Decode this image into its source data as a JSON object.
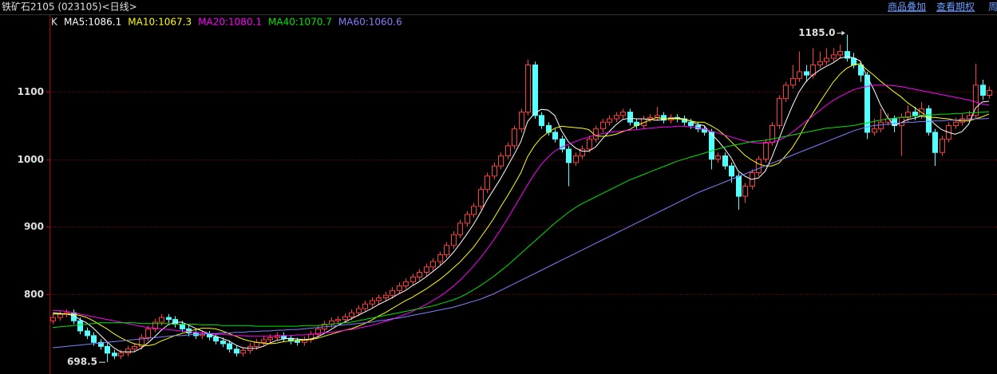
{
  "toolbar": [
    "商品叠加",
    "查看期权",
    "周"
  ],
  "chart_data": {
    "type": "candlestick",
    "title": "铁矿石2105 (023105)<日线>",
    "candle_label": "K",
    "up_color": "#ff3c3c",
    "down_color": "#54ffff",
    "grid": true,
    "ylim": [
      681,
      1214
    ],
    "yticks": [
      800,
      900,
      1000,
      1100
    ],
    "max_label": "1185.0",
    "max_index": 117,
    "min_index": 8,
    "open": [
      760,
      765,
      770,
      772,
      760,
      745,
      738,
      728,
      722,
      712,
      708,
      712,
      718,
      722,
      735,
      748,
      758,
      765,
      762,
      755,
      748,
      742,
      738,
      740,
      736,
      730,
      726,
      718,
      712,
      716,
      722,
      728,
      732,
      735,
      738,
      734,
      730,
      728,
      732,
      740,
      748,
      755,
      760,
      762,
      766,
      772,
      778,
      785,
      790,
      794,
      798,
      805,
      812,
      818,
      825,
      832,
      840,
      848,
      858,
      872,
      888,
      905,
      918,
      930,
      955,
      975,
      990,
      1005,
      1020,
      1045,
      1070,
      1140,
      1065,
      1050,
      1040,
      1030,
      1015,
      995,
      1005,
      1015,
      1030,
      1045,
      1055,
      1060,
      1065,
      1070,
      1055,
      1050,
      1060,
      1062,
      1065,
      1058,
      1062,
      1060,
      1055,
      1050,
      1045,
      1040,
      1000,
      1005,
      990,
      975,
      945,
      960,
      980,
      1000,
      1025,
      1050,
      1090,
      1110,
      1120,
      1130,
      1125,
      1140,
      1145,
      1150,
      1155,
      1160,
      1150,
      1140,
      1125,
      1040,
      1045,
      1055,
      1060,
      1050,
      1062,
      1070,
      1065,
      1075,
      1040,
      1010,
      1030,
      1050,
      1055,
      1060,
      1065,
      1110,
      1095
    ],
    "high": [
      770,
      775,
      777,
      777,
      765,
      750,
      743,
      733,
      727,
      717,
      717,
      723,
      727,
      740,
      753,
      763,
      770,
      770,
      767,
      760,
      753,
      747,
      745,
      745,
      741,
      735,
      731,
      723,
      721,
      727,
      733,
      737,
      740,
      743,
      743,
      739,
      735,
      737,
      745,
      753,
      760,
      765,
      767,
      771,
      777,
      783,
      790,
      795,
      799,
      803,
      810,
      817,
      823,
      830,
      837,
      845,
      853,
      863,
      877,
      893,
      910,
      923,
      935,
      960,
      980,
      995,
      1010,
      1025,
      1050,
      1075,
      1148,
      1145,
      1070,
      1055,
      1045,
      1035,
      1020,
      1010,
      1020,
      1035,
      1050,
      1060,
      1065,
      1070,
      1075,
      1075,
      1060,
      1065,
      1067,
      1078,
      1070,
      1067,
      1067,
      1065,
      1060,
      1055,
      1050,
      1045,
      1010,
      1010,
      995,
      980,
      965,
      985,
      1005,
      1030,
      1055,
      1095,
      1115,
      1140,
      1160,
      1140,
      1165,
      1160,
      1165,
      1165,
      1170,
      1185,
      1158,
      1145,
      1130,
      1060,
      1075,
      1068,
      1065,
      1068,
      1080,
      1078,
      1085,
      1080,
      1045,
      1035,
      1055,
      1062,
      1068,
      1072,
      1142,
      1118,
      1108
    ],
    "low": [
      755,
      760,
      765,
      755,
      740,
      733,
      723,
      717,
      698.5,
      703,
      703,
      707,
      713,
      717,
      730,
      743,
      753,
      757,
      750,
      743,
      737,
      733,
      733,
      731,
      725,
      721,
      713,
      707,
      707,
      711,
      717,
      723,
      727,
      730,
      729,
      725,
      723,
      723,
      727,
      735,
      743,
      750,
      755,
      757,
      761,
      767,
      773,
      780,
      785,
      789,
      793,
      800,
      807,
      813,
      820,
      827,
      835,
      843,
      853,
      867,
      883,
      900,
      913,
      925,
      950,
      970,
      985,
      1000,
      1015,
      1040,
      1065,
      1060,
      1045,
      1035,
      1025,
      1010,
      960,
      990,
      1000,
      1010,
      1025,
      1040,
      1050,
      1055,
      1060,
      1050,
      1045,
      1045,
      1055,
      1057,
      1053,
      1053,
      1055,
      1050,
      1045,
      1040,
      1035,
      985,
      995,
      985,
      965,
      925,
      935,
      955,
      975,
      995,
      1020,
      1045,
      1085,
      1105,
      1115,
      1115,
      1120,
      1135,
      1140,
      1145,
      1150,
      1145,
      1135,
      1115,
      1030,
      1035,
      1040,
      1050,
      1040,
      1005,
      1055,
      1058,
      1060,
      1035,
      990,
      1005,
      1025,
      1045,
      1050,
      1055,
      1060,
      1088,
      1090
    ],
    "close": [
      765,
      770,
      772,
      760,
      745,
      738,
      728,
      722,
      712,
      708,
      712,
      718,
      722,
      735,
      748,
      758,
      765,
      762,
      755,
      748,
      742,
      738,
      740,
      736,
      730,
      726,
      718,
      712,
      716,
      722,
      728,
      732,
      735,
      738,
      734,
      730,
      728,
      732,
      740,
      748,
      755,
      760,
      762,
      766,
      772,
      778,
      785,
      790,
      794,
      798,
      805,
      812,
      818,
      825,
      832,
      840,
      848,
      858,
      872,
      888,
      905,
      918,
      930,
      955,
      975,
      990,
      1005,
      1020,
      1045,
      1070,
      1140,
      1065,
      1050,
      1040,
      1030,
      1015,
      995,
      1005,
      1015,
      1030,
      1045,
      1055,
      1060,
      1065,
      1070,
      1055,
      1050,
      1060,
      1062,
      1065,
      1058,
      1062,
      1060,
      1055,
      1050,
      1045,
      1040,
      1000,
      1005,
      990,
      975,
      945,
      960,
      980,
      1000,
      1025,
      1050,
      1090,
      1110,
      1120,
      1130,
      1125,
      1140,
      1145,
      1150,
      1155,
      1160,
      1150,
      1140,
      1125,
      1040,
      1045,
      1055,
      1060,
      1050,
      1062,
      1070,
      1065,
      1075,
      1040,
      1010,
      1030,
      1050,
      1055,
      1060,
      1065,
      1110,
      1095,
      1102
    ],
    "series": [
      {
        "name": "MA5:",
        "color": "#ffffff",
        "values": [
          772,
          771,
          770,
          768,
          762,
          757,
          749,
          739,
          729,
          720,
          714,
          714,
          714,
          719,
          727,
          736,
          746,
          754,
          758,
          758,
          754,
          749,
          745,
          741,
          737,
          734,
          730,
          724,
          720,
          719,
          719,
          722,
          727,
          731,
          733,
          734,
          733,
          732,
          733,
          736,
          741,
          747,
          753,
          758,
          763,
          768,
          773,
          778,
          784,
          789,
          794,
          800,
          805,
          812,
          818,
          825,
          833,
          841,
          850,
          861,
          874,
          888,
          903,
          920,
          939,
          955,
          971,
          989,
          1007,
          1026,
          1056,
          1068,
          1074,
          1073,
          1065,
          1042,
          1026,
          1017,
          1012,
          1012,
          1018,
          1030,
          1041,
          1051,
          1059,
          1061,
          1060,
          1060,
          1059,
          1058,
          1059,
          1061,
          1061,
          1060,
          1057,
          1052,
          1050,
          1038,
          1028,
          1016,
          1002,
          983,
          975,
          970,
          972,
          982,
          1003,
          1029,
          1055,
          1079,
          1100,
          1115,
          1125,
          1132,
          1138,
          1143,
          1150,
          1152,
          1151,
          1146,
          1123,
          1104,
          1081,
          1063,
          1050,
          1054,
          1059,
          1061,
          1064,
          1062,
          1052,
          1044,
          1040,
          1037,
          1041,
          1052,
          1076,
          1085,
          1086.1
        ]
      },
      {
        "name": "MA10:",
        "color": "#ffff00",
        "values": [
          770,
          770,
          770,
          770,
          768,
          765,
          760,
          754,
          748,
          741,
          735,
          730,
          726,
          724,
          723,
          725,
          730,
          734,
          738,
          741,
          744,
          747,
          749,
          749,
          748,
          745,
          741,
          737,
          733,
          730,
          728,
          727,
          726,
          727,
          729,
          730,
          731,
          731,
          732,
          734,
          737,
          740,
          743,
          746,
          748,
          752,
          756,
          761,
          767,
          772,
          778,
          784,
          790,
          795,
          801,
          807,
          814,
          821,
          829,
          838,
          847,
          858,
          869,
          883,
          897,
          912,
          929,
          945,
          962,
          980,
          1004,
          1020,
          1032,
          1040,
          1046,
          1049,
          1048,
          1047,
          1046,
          1044,
          1035,
          1034,
          1035,
          1037,
          1041,
          1044,
          1050,
          1054,
          1058,
          1062,
          1060,
          1060,
          1060,
          1059,
          1057,
          1055,
          1055,
          1050,
          1044,
          1036,
          1026,
          1016,
          1006,
          999,
          993,
          990,
          990,
          994,
          1005,
          1017,
          1033,
          1052,
          1068,
          1084,
          1099,
          1114,
          1126,
          1135,
          1140,
          1142,
          1133,
          1125,
          1116,
          1108,
          1100,
          1093,
          1084,
          1077,
          1070,
          1062,
          1062,
          1061,
          1060,
          1058,
          1057,
          1057,
          1060,
          1063,
          1067.3
        ]
      },
      {
        "name": "MA20:",
        "color": "#ff00ff",
        "values": [
          775,
          775,
          774,
          772,
          770,
          768,
          766,
          764,
          762,
          760,
          758,
          756,
          754,
          752,
          750,
          749,
          748,
          747,
          746,
          745,
          744,
          743,
          742,
          741,
          740,
          740,
          739,
          738,
          738,
          737,
          737,
          737,
          737,
          737,
          738,
          738,
          739,
          739,
          740,
          741,
          742,
          743,
          744,
          746,
          747,
          749,
          751,
          753,
          756,
          759,
          762,
          766,
          770,
          774,
          779,
          784,
          790,
          796,
          803,
          811,
          820,
          830,
          841,
          853,
          866,
          880,
          895,
          911,
          928,
          945,
          962,
          978,
          992,
          1003,
          1012,
          1018,
          1022,
          1026,
          1030,
          1033,
          1036,
          1038,
          1040,
          1041,
          1042,
          1043,
          1044,
          1045,
          1046,
          1047,
          1048,
          1048,
          1049,
          1049,
          1048,
          1047,
          1045,
          1042,
          1039,
          1036,
          1033,
          1030,
          1027,
          1025,
          1024,
          1024,
          1025,
          1028,
          1033,
          1040,
          1048,
          1056,
          1064,
          1072,
          1080,
          1087,
          1093,
          1098,
          1103,
          1106,
          1108,
          1110,
          1110,
          1110,
          1109,
          1108,
          1106,
          1104,
          1102,
          1100,
          1098,
          1096,
          1094,
          1092,
          1090,
          1088,
          1085,
          1082,
          1080.1
        ]
      },
      {
        "name": "MA40:",
        "color": "#00e600",
        "values": [
          750,
          751,
          752,
          753,
          754,
          755,
          756,
          757,
          757,
          757,
          757,
          757,
          757,
          756,
          756,
          756,
          756,
          756,
          755,
          755,
          755,
          755,
          754,
          754,
          754,
          753,
          753,
          753,
          753,
          753,
          752,
          752,
          752,
          752,
          752,
          752,
          752,
          753,
          753,
          753,
          754,
          755,
          756,
          757,
          758,
          760,
          762,
          764,
          766,
          768,
          770,
          772,
          774,
          776,
          778,
          780,
          782,
          785,
          788,
          791,
          795,
          800,
          806,
          812,
          819,
          826,
          834,
          842,
          851,
          860,
          869,
          878,
          887,
          896,
          905,
          913,
          921,
          928,
          934,
          939,
          944,
          949,
          954,
          959,
          964,
          969,
          973,
          977,
          981,
          985,
          989,
          993,
          997,
          1000,
          1003,
          1006,
          1009,
          1012,
          1015,
          1018,
          1020,
          1022,
          1024,
          1026,
          1027,
          1028,
          1030,
          1032,
          1034,
          1036,
          1038,
          1040,
          1042,
          1044,
          1046,
          1047,
          1048,
          1049,
          1050,
          1052,
          1054,
          1056,
          1058,
          1060,
          1061,
          1062,
          1063,
          1064,
          1065,
          1066,
          1066,
          1067,
          1067,
          1068,
          1068,
          1069,
          1069,
          1070,
          1070.7
        ]
      },
      {
        "name": "MA60:",
        "color": "#8080ff",
        "values": [
          720,
          721,
          722,
          723,
          724,
          725,
          726,
          727,
          728,
          729,
          730,
          731,
          732,
          733,
          734,
          735,
          736,
          737,
          738,
          738,
          739,
          740,
          740,
          741,
          741,
          742,
          742,
          743,
          743,
          744,
          744,
          745,
          745,
          746,
          746,
          747,
          747,
          748,
          749,
          750,
          751,
          752,
          753,
          754,
          755,
          756,
          757,
          758,
          760,
          761,
          763,
          764,
          766,
          768,
          770,
          772,
          774,
          776,
          778,
          780,
          783,
          786,
          789,
          792,
          796,
          800,
          805,
          810,
          815,
          820,
          825,
          830,
          835,
          840,
          845,
          850,
          855,
          860,
          865,
          870,
          875,
          880,
          885,
          890,
          895,
          900,
          905,
          910,
          915,
          920,
          925,
          930,
          935,
          940,
          945,
          950,
          954,
          958,
          962,
          966,
          970,
          974,
          978,
          982,
          986,
          990,
          994,
          998,
          1002,
          1006,
          1010,
          1014,
          1018,
          1022,
          1026,
          1030,
          1034,
          1038,
          1042,
          1045,
          1048,
          1050,
          1051,
          1052,
          1053,
          1054,
          1055,
          1055,
          1056,
          1056,
          1057,
          1057,
          1058,
          1058,
          1059,
          1059,
          1060,
          1060,
          1060.6
        ]
      }
    ]
  }
}
